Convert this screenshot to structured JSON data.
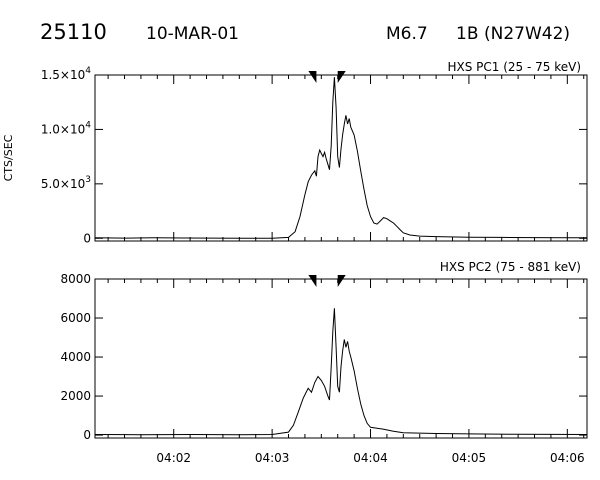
{
  "header": {
    "event_id": "25110",
    "date": "10-MAR-01",
    "flare_class": "M6.7",
    "optical_class": "1B",
    "location": "(N27W42)"
  },
  "chart_data": [
    {
      "type": "line",
      "title": "HXS PC1 (25 - 75 keV)",
      "ylabel": "CTS/SEC",
      "xlabel": "",
      "xlim": [
        "04:01:12",
        "04:06:12"
      ],
      "ylim": [
        -250,
        15000
      ],
      "y_ticks": [
        0,
        5000,
        10000,
        15000
      ],
      "y_tick_labels": [
        {
          "mantissa": "0",
          "exponent": ""
        },
        {
          "mantissa": "5.0×10",
          "exponent": "3"
        },
        {
          "mantissa": "1.0×10",
          "exponent": "4"
        },
        {
          "mantissa": "1.5×10",
          "exponent": "4"
        }
      ],
      "x_ticks": [
        "04:02",
        "04:03",
        "04:04",
        "04:05",
        "04:06"
      ],
      "markers": [
        "04:03:27",
        "04:03:40"
      ],
      "series": [
        {
          "points": [
            [
              "04:01:12",
              50
            ],
            [
              "04:01:30",
              20
            ],
            [
              "04:01:48",
              40
            ],
            [
              "04:02:06",
              30
            ],
            [
              "04:02:24",
              20
            ],
            [
              "04:02:42",
              10
            ],
            [
              "04:03:00",
              10
            ],
            [
              "04:03:10",
              80
            ],
            [
              "04:03:14",
              600
            ],
            [
              "04:03:17",
              2000
            ],
            [
              "04:03:20",
              4000
            ],
            [
              "04:03:22",
              5200
            ],
            [
              "04:03:24",
              5800
            ],
            [
              "04:03:26",
              6200
            ],
            [
              "04:03:27",
              5700
            ],
            [
              "04:03:28",
              7500
            ],
            [
              "04:03:29",
              8100
            ],
            [
              "04:03:30",
              7800
            ],
            [
              "04:03:31",
              7500
            ],
            [
              "04:03:32",
              7900
            ],
            [
              "04:03:33",
              7300
            ],
            [
              "04:03:34",
              6800
            ],
            [
              "04:03:35",
              6300
            ],
            [
              "04:03:36",
              8500
            ],
            [
              "04:03:37",
              12500
            ],
            [
              "04:03:38",
              14800
            ],
            [
              "04:03:39",
              12000
            ],
            [
              "04:03:40",
              7500
            ],
            [
              "04:03:41",
              6500
            ],
            [
              "04:03:42",
              8200
            ],
            [
              "04:03:43",
              9500
            ],
            [
              "04:03:44",
              10500
            ],
            [
              "04:03:45",
              11300
            ],
            [
              "04:03:46",
              10500
            ],
            [
              "04:03:47",
              11000
            ],
            [
              "04:03:48",
              10200
            ],
            [
              "04:03:50",
              9500
            ],
            [
              "04:03:52",
              8000
            ],
            [
              "04:03:54",
              6200
            ],
            [
              "04:03:56",
              4500
            ],
            [
              "04:03:58",
              3000
            ],
            [
              "04:04:00",
              2000
            ],
            [
              "04:04:02",
              1400
            ],
            [
              "04:04:04",
              1300
            ],
            [
              "04:04:06",
              1600
            ],
            [
              "04:04:08",
              1900
            ],
            [
              "04:04:10",
              1800
            ],
            [
              "04:04:12",
              1600
            ],
            [
              "04:04:14",
              1400
            ],
            [
              "04:04:16",
              1100
            ],
            [
              "04:04:18",
              800
            ],
            [
              "04:04:20",
              500
            ],
            [
              "04:04:24",
              300
            ],
            [
              "04:04:30",
              200
            ],
            [
              "04:04:40",
              150
            ],
            [
              "04:05:00",
              100
            ],
            [
              "04:05:20",
              80
            ],
            [
              "04:05:40",
              60
            ],
            [
              "04:06:00",
              50
            ],
            [
              "04:06:12",
              40
            ]
          ]
        }
      ]
    },
    {
      "type": "line",
      "title": "HXS PC2 (75 - 881 keV)",
      "ylabel": "",
      "xlabel": "",
      "xlim": [
        "04:01:12",
        "04:06:12"
      ],
      "ylim": [
        -150,
        8000
      ],
      "y_ticks": [
        0,
        2000,
        4000,
        6000,
        8000
      ],
      "y_tick_labels": [
        {
          "mantissa": "0",
          "exponent": ""
        },
        {
          "mantissa": "2000",
          "exponent": ""
        },
        {
          "mantissa": "4000",
          "exponent": ""
        },
        {
          "mantissa": "6000",
          "exponent": ""
        },
        {
          "mantissa": "8000",
          "exponent": ""
        }
      ],
      "x_ticks": [
        "04:02",
        "04:03",
        "04:04",
        "04:05",
        "04:06"
      ],
      "markers": [
        "04:03:27",
        "04:03:40"
      ],
      "series": [
        {
          "points": [
            [
              "04:01:12",
              30
            ],
            [
              "04:01:40",
              20
            ],
            [
              "04:02:10",
              30
            ],
            [
              "04:02:40",
              20
            ],
            [
              "04:03:00",
              30
            ],
            [
              "04:03:10",
              150
            ],
            [
              "04:03:13",
              500
            ],
            [
              "04:03:16",
              1200
            ],
            [
              "04:03:19",
              1900
            ],
            [
              "04:03:22",
              2400
            ],
            [
              "04:03:24",
              2200
            ],
            [
              "04:03:26",
              2700
            ],
            [
              "04:03:28",
              3000
            ],
            [
              "04:03:30",
              2800
            ],
            [
              "04:03:32",
              2500
            ],
            [
              "04:03:34",
              2000
            ],
            [
              "04:03:35",
              1800
            ],
            [
              "04:03:36",
              3500
            ],
            [
              "04:03:37",
              5300
            ],
            [
              "04:03:38",
              6500
            ],
            [
              "04:03:39",
              4500
            ],
            [
              "04:03:40",
              2500
            ],
            [
              "04:03:41",
              2200
            ],
            [
              "04:03:42",
              3500
            ],
            [
              "04:03:43",
              4300
            ],
            [
              "04:03:44",
              4900
            ],
            [
              "04:03:45",
              4500
            ],
            [
              "04:03:46",
              4800
            ],
            [
              "04:03:47",
              4300
            ],
            [
              "04:03:48",
              4000
            ],
            [
              "04:03:50",
              3300
            ],
            [
              "04:03:52",
              2400
            ],
            [
              "04:03:54",
              1600
            ],
            [
              "04:03:56",
              1000
            ],
            [
              "04:03:58",
              600
            ],
            [
              "04:04:00",
              400
            ],
            [
              "04:04:04",
              350
            ],
            [
              "04:04:08",
              300
            ],
            [
              "04:04:14",
              200
            ],
            [
              "04:04:20",
              120
            ],
            [
              "04:04:40",
              80
            ],
            [
              "04:05:00",
              60
            ],
            [
              "04:05:30",
              40
            ],
            [
              "04:06:12",
              30
            ]
          ]
        }
      ]
    }
  ]
}
